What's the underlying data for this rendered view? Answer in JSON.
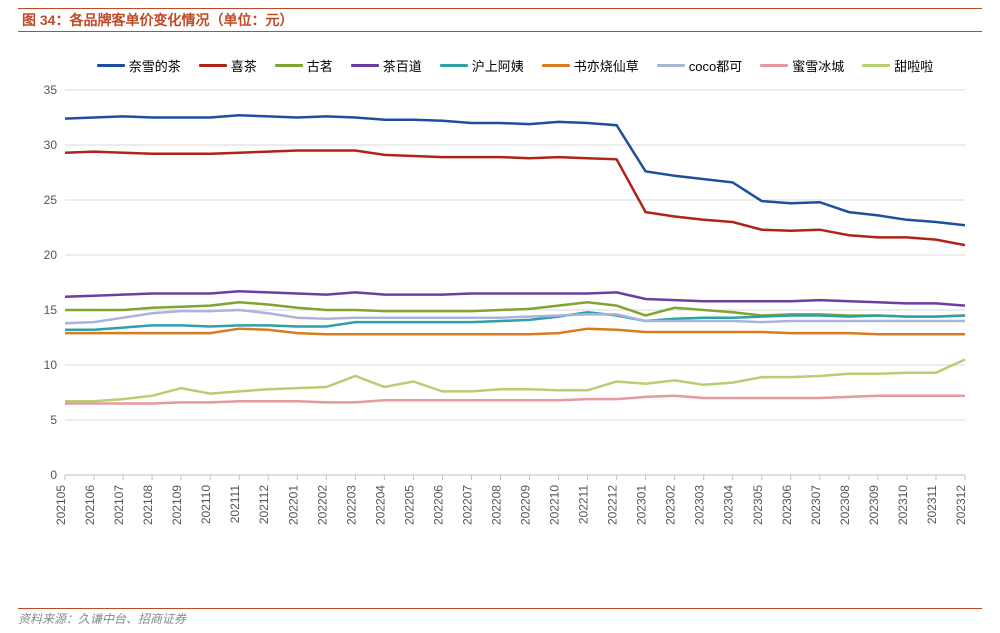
{
  "title": "图 34：各品牌客单价变化情况（单位：元）",
  "source": "资料来源：久谦中台、招商证券",
  "chart": {
    "type": "line",
    "background_color": "#ffffff",
    "grid_color": "#d9d9d9",
    "axis_color": "#bfbfbf",
    "ylim": [
      0,
      35
    ],
    "ytick_step": 5,
    "yticks": [
      0,
      5,
      10,
      15,
      20,
      25,
      30,
      35
    ],
    "line_width": 2.5,
    "title_color": "#c04a28",
    "title_fontsize": 14,
    "legend_fontsize": 13,
    "tick_fontsize": 12,
    "x_labels": [
      "202105",
      "202106",
      "202107",
      "202108",
      "202109",
      "202110",
      "202111",
      "202112",
      "202201",
      "202202",
      "202203",
      "202204",
      "202205",
      "202206",
      "202207",
      "202208",
      "202209",
      "202210",
      "202211",
      "202212",
      "202301",
      "202302",
      "202303",
      "202304",
      "202305",
      "202306",
      "202307",
      "202308",
      "202309",
      "202310",
      "202311",
      "202312"
    ],
    "series": [
      {
        "name": "奈雪的茶",
        "color": "#1f4e9c",
        "values": [
          32.4,
          32.5,
          32.6,
          32.5,
          32.5,
          32.5,
          32.7,
          32.6,
          32.5,
          32.6,
          32.5,
          32.3,
          32.3,
          32.2,
          32.0,
          32.0,
          31.9,
          32.1,
          32.0,
          31.8,
          27.6,
          27.2,
          26.9,
          26.6,
          24.9,
          24.7,
          24.8,
          23.9,
          23.6,
          23.2,
          23.0,
          22.7
        ]
      },
      {
        "name": "喜茶",
        "color": "#b02418",
        "values": [
          29.3,
          29.4,
          29.3,
          29.2,
          29.2,
          29.2,
          29.3,
          29.4,
          29.5,
          29.5,
          29.5,
          29.1,
          29.0,
          28.9,
          28.9,
          28.9,
          28.8,
          28.9,
          28.8,
          28.7,
          23.9,
          23.5,
          23.2,
          23.0,
          22.3,
          22.2,
          22.3,
          21.8,
          21.6,
          21.6,
          21.4,
          20.9
        ]
      },
      {
        "name": "古茗",
        "color": "#7fa52e",
        "values": [
          15.0,
          15.0,
          15.0,
          15.2,
          15.3,
          15.4,
          15.7,
          15.5,
          15.2,
          15.0,
          15.0,
          14.9,
          14.9,
          14.9,
          14.9,
          15.0,
          15.1,
          15.4,
          15.7,
          15.4,
          14.5,
          15.2,
          15.0,
          14.8,
          14.5,
          14.6,
          14.6,
          14.5,
          14.5,
          14.4,
          14.4,
          14.5
        ]
      },
      {
        "name": "茶百道",
        "color": "#6b3fa0",
        "values": [
          16.2,
          16.3,
          16.4,
          16.5,
          16.5,
          16.5,
          16.7,
          16.6,
          16.5,
          16.4,
          16.6,
          16.4,
          16.4,
          16.4,
          16.5,
          16.5,
          16.5,
          16.5,
          16.5,
          16.6,
          16.0,
          15.9,
          15.8,
          15.8,
          15.8,
          15.8,
          15.9,
          15.8,
          15.7,
          15.6,
          15.6,
          15.4
        ]
      },
      {
        "name": "沪上阿姨",
        "color": "#2fa0a6",
        "values": [
          13.2,
          13.2,
          13.4,
          13.6,
          13.6,
          13.5,
          13.6,
          13.6,
          13.5,
          13.5,
          13.9,
          13.9,
          13.9,
          13.9,
          13.9,
          14.0,
          14.1,
          14.4,
          14.8,
          14.5,
          14.0,
          14.2,
          14.3,
          14.3,
          14.4,
          14.5,
          14.5,
          14.4,
          14.5,
          14.4,
          14.4,
          14.5
        ]
      },
      {
        "name": "书亦烧仙草",
        "color": "#d97b1f",
        "values": [
          12.9,
          12.9,
          12.9,
          12.9,
          12.9,
          12.9,
          13.3,
          13.2,
          12.9,
          12.8,
          12.8,
          12.8,
          12.8,
          12.8,
          12.8,
          12.8,
          12.8,
          12.9,
          13.3,
          13.2,
          13.0,
          13.0,
          13.0,
          13.0,
          13.0,
          12.9,
          12.9,
          12.9,
          12.8,
          12.8,
          12.8,
          12.8
        ]
      },
      {
        "name": "coco都可",
        "color": "#a8b4d9",
        "values": [
          13.8,
          13.9,
          14.3,
          14.7,
          14.9,
          14.9,
          15.0,
          14.7,
          14.3,
          14.2,
          14.3,
          14.3,
          14.3,
          14.3,
          14.3,
          14.3,
          14.4,
          14.5,
          14.6,
          14.6,
          14.0,
          14.0,
          14.0,
          14.0,
          13.9,
          14.0,
          14.0,
          14.0,
          14.0,
          14.0,
          14.0,
          14.0
        ]
      },
      {
        "name": "蜜雪冰城",
        "color": "#e59aa2",
        "values": [
          6.5,
          6.5,
          6.5,
          6.5,
          6.6,
          6.6,
          6.7,
          6.7,
          6.7,
          6.6,
          6.6,
          6.8,
          6.8,
          6.8,
          6.8,
          6.8,
          6.8,
          6.8,
          6.9,
          6.9,
          7.1,
          7.2,
          7.0,
          7.0,
          7.0,
          7.0,
          7.0,
          7.1,
          7.2,
          7.2,
          7.2,
          7.2
        ]
      },
      {
        "name": "甜啦啦",
        "color": "#b6cf72",
        "values": [
          6.7,
          6.7,
          6.9,
          7.2,
          7.9,
          7.4,
          7.6,
          7.8,
          7.9,
          8.0,
          9.0,
          8.0,
          8.5,
          7.6,
          7.6,
          7.8,
          7.8,
          7.7,
          7.7,
          8.5,
          8.3,
          8.6,
          8.2,
          8.4,
          8.9,
          8.9,
          9.0,
          9.2,
          9.2,
          9.3,
          9.3,
          10.5
        ]
      }
    ]
  }
}
